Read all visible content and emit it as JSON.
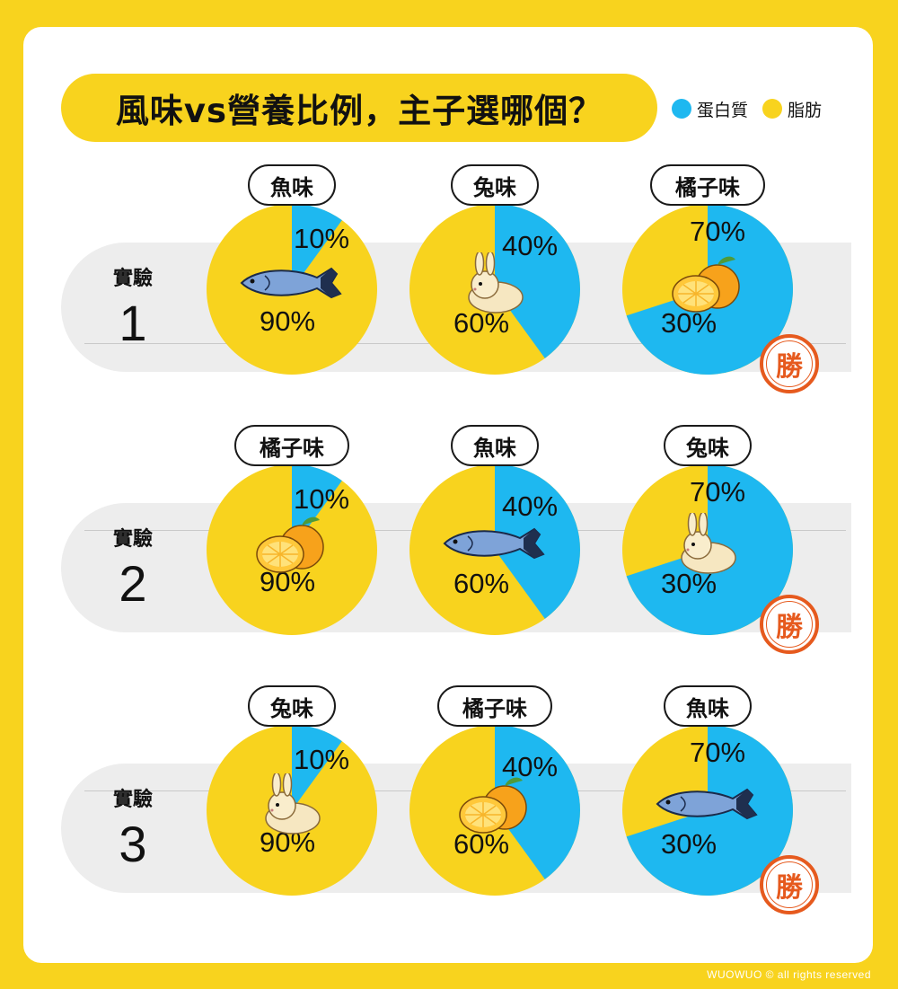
{
  "title": "風味vs營養比例，主子選哪個？",
  "legend": [
    {
      "label": "蛋白質",
      "color": "#1EB8F0"
    },
    {
      "label": "脂肪",
      "color": "#F8D31E"
    }
  ],
  "win_label": "勝",
  "footer": "WUOWUO © all rights reserved",
  "chart_data": {
    "type": "pie",
    "series_names": [
      "蛋白質",
      "脂肪"
    ],
    "rows": [
      {
        "label": "實驗",
        "number": "1",
        "pies": [
          {
            "flavor": "魚味",
            "icon": "fish-icon",
            "protein": 10,
            "fat": 90,
            "protein_label": "10%",
            "fat_label": "90%",
            "winner": false
          },
          {
            "flavor": "兔味",
            "icon": "rabbit-icon",
            "protein": 40,
            "fat": 60,
            "protein_label": "40%",
            "fat_label": "60%",
            "winner": false
          },
          {
            "flavor": "橘子味",
            "icon": "orange-icon",
            "protein": 70,
            "fat": 30,
            "protein_label": "70%",
            "fat_label": "30%",
            "winner": true
          }
        ]
      },
      {
        "label": "實驗",
        "number": "2",
        "pies": [
          {
            "flavor": "橘子味",
            "icon": "orange-icon",
            "protein": 10,
            "fat": 90,
            "protein_label": "10%",
            "fat_label": "90%",
            "winner": false
          },
          {
            "flavor": "魚味",
            "icon": "fish-icon",
            "protein": 40,
            "fat": 60,
            "protein_label": "40%",
            "fat_label": "60%",
            "winner": false
          },
          {
            "flavor": "兔味",
            "icon": "rabbit-icon",
            "protein": 70,
            "fat": 30,
            "protein_label": "70%",
            "fat_label": "30%",
            "winner": true
          }
        ]
      },
      {
        "label": "實驗",
        "number": "3",
        "pies": [
          {
            "flavor": "兔味",
            "icon": "rabbit-icon",
            "protein": 10,
            "fat": 90,
            "protein_label": "10%",
            "fat_label": "90%",
            "winner": false
          },
          {
            "flavor": "橘子味",
            "icon": "orange-icon",
            "protein": 40,
            "fat": 60,
            "protein_label": "40%",
            "fat_label": "60%",
            "winner": false
          },
          {
            "flavor": "魚味",
            "icon": "fish-icon",
            "protein": 70,
            "fat": 30,
            "protein_label": "70%",
            "fat_label": "30%",
            "winner": true
          }
        ]
      }
    ]
  }
}
